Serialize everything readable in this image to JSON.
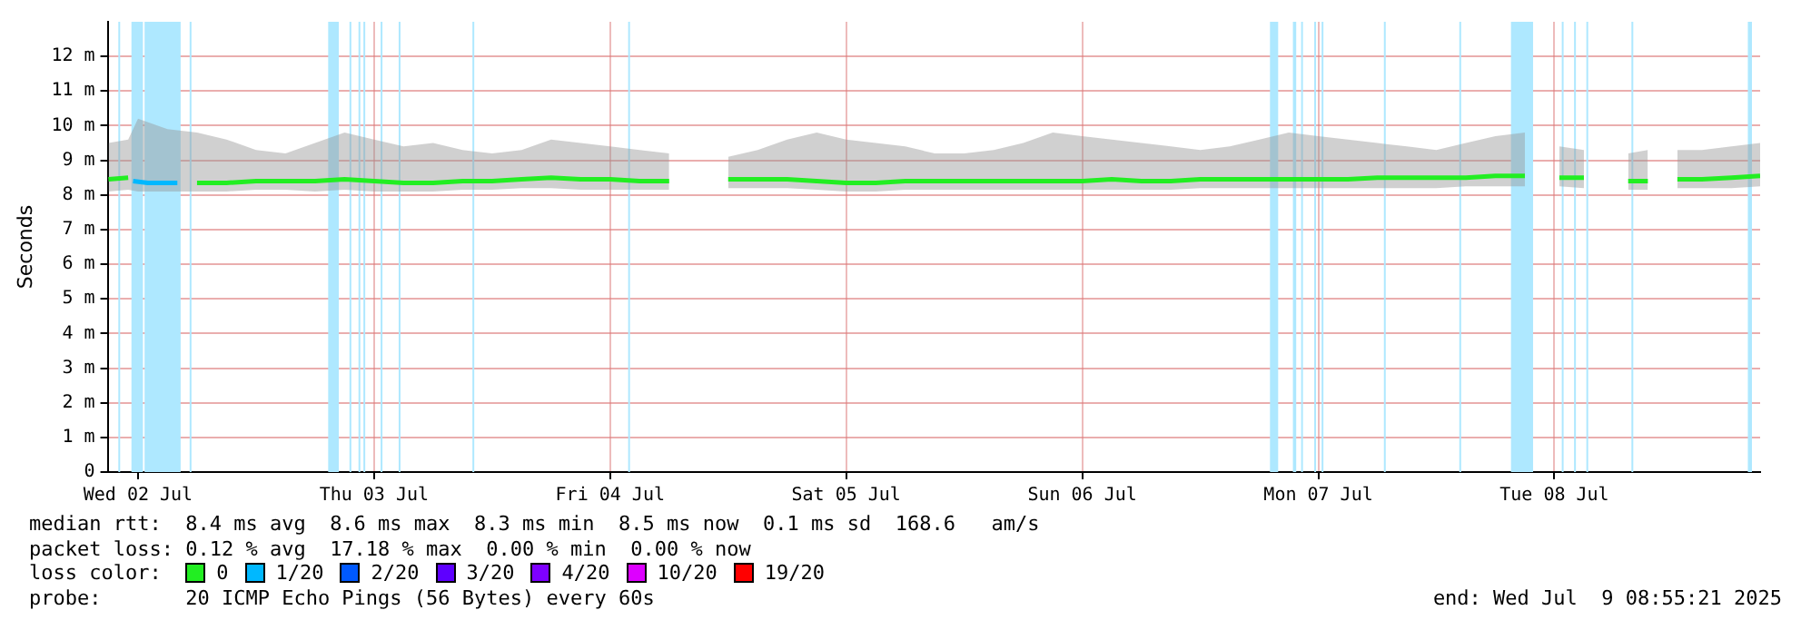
{
  "chart_data": {
    "type": "line",
    "ylabel": "Seconds",
    "legend_title": "loss color:",
    "legend": "bottom",
    "grid": true,
    "line_style": "solid",
    "marker": "none",
    "xlim": [
      "2025-07-02T08:55",
      "2025-07-09T08:55"
    ],
    "xticks": [
      {
        "value": "2025-07-02T12:00",
        "label": "Wed 02 Jul"
      },
      {
        "value": "2025-07-03T12:00",
        "label": "Thu 03 Jul"
      },
      {
        "value": "2025-07-04T12:00",
        "label": "Fri 04 Jul"
      },
      {
        "value": "2025-07-05T12:00",
        "label": "Sat 05 Jul"
      },
      {
        "value": "2025-07-06T12:00",
        "label": "Sun 06 Jul"
      },
      {
        "value": "2025-07-07T12:00",
        "label": "Mon 07 Jul"
      },
      {
        "value": "2025-07-08T12:00",
        "label": "Tue 08 Jul"
      }
    ],
    "ylim": [
      0,
      13
    ],
    "yticks": [
      0,
      {
        "value": 1,
        "label": "1 m"
      },
      {
        "value": 2,
        "label": "2 m"
      },
      {
        "value": 3,
        "label": "3 m"
      },
      {
        "value": 4,
        "label": "4 m"
      },
      {
        "value": 5,
        "label": "5 m"
      },
      {
        "value": 6,
        "label": "6 m"
      },
      {
        "value": 7,
        "label": "7 m"
      },
      {
        "value": 8,
        "label": "8 m"
      },
      {
        "value": 9,
        "label": "9 m"
      },
      {
        "value": 10,
        "label": "10 m"
      },
      {
        "value": 11,
        "label": "11 m"
      },
      {
        "value": 12,
        "label": "12 m"
      }
    ],
    "series": [
      {
        "name": "0",
        "color": "#22ee22",
        "x": [
          "2025-07-02T09:00",
          "2025-07-02T11:00",
          "2025-07-02T12:00",
          "2025-07-02T15:00",
          "2025-07-02T18:00",
          "2025-07-02T21:00",
          "2025-07-03T00:00",
          "2025-07-03T03:00",
          "2025-07-03T06:00",
          "2025-07-03T09:00",
          "2025-07-03T12:00",
          "2025-07-03T15:00",
          "2025-07-03T18:00",
          "2025-07-03T21:00",
          "2025-07-04T00:00",
          "2025-07-04T03:00",
          "2025-07-04T06:00",
          "2025-07-04T09:00",
          "2025-07-04T12:00",
          "2025-07-04T15:00",
          "2025-07-04T18:00",
          "2025-07-04T21:00",
          "2025-07-05T00:00",
          "2025-07-05T03:00",
          "2025-07-05T06:00",
          "2025-07-05T09:00",
          "2025-07-05T12:00",
          "2025-07-05T15:00",
          "2025-07-05T18:00",
          "2025-07-05T21:00",
          "2025-07-06T00:00",
          "2025-07-06T03:00",
          "2025-07-06T06:00",
          "2025-07-06T09:00",
          "2025-07-06T12:00",
          "2025-07-06T15:00",
          "2025-07-06T18:00",
          "2025-07-06T21:00",
          "2025-07-07T00:00",
          "2025-07-07T03:00",
          "2025-07-07T06:00",
          "2025-07-07T09:00",
          "2025-07-07T12:00",
          "2025-07-07T15:00",
          "2025-07-07T18:00",
          "2025-07-07T21:00",
          "2025-07-08T00:00",
          "2025-07-08T03:00",
          "2025-07-08T06:00",
          "2025-07-08T09:00",
          "2025-07-08T11:00",
          "2025-07-08T12:30",
          "2025-07-08T15:00",
          "2025-07-08T18:15",
          "2025-07-08T19:30",
          "2025-07-08T21:30",
          "2025-07-08T23:00",
          "2025-07-09T00:30",
          "2025-07-09T03:00",
          "2025-07-09T06:00",
          "2025-07-09T08:55"
        ],
        "values": [
          8.45,
          8.5,
          null,
          null,
          8.35,
          8.35,
          8.4,
          8.4,
          8.4,
          8.45,
          8.4,
          8.35,
          8.35,
          8.4,
          8.4,
          8.45,
          8.5,
          8.45,
          8.45,
          8.4,
          8.4,
          null,
          8.45,
          8.45,
          8.45,
          8.4,
          8.35,
          8.35,
          8.4,
          8.4,
          8.4,
          8.4,
          8.4,
          8.4,
          8.4,
          8.45,
          8.4,
          8.4,
          8.45,
          8.45,
          8.45,
          8.45,
          8.45,
          8.45,
          8.5,
          8.5,
          8.5,
          8.5,
          8.55,
          8.55,
          null,
          8.5,
          8.5,
          null,
          8.4,
          8.4,
          null,
          8.45,
          8.45,
          8.5,
          8.55
        ],
        "lower": [
          8.1,
          8.15,
          8.1,
          8.1,
          8.1,
          8.1,
          8.15,
          8.15,
          8.1,
          8.15,
          8.1,
          8.1,
          8.1,
          8.15,
          8.15,
          8.2,
          8.2,
          8.15,
          8.15,
          8.15,
          8.15,
          null,
          8.2,
          8.2,
          8.2,
          8.15,
          8.1,
          8.1,
          8.15,
          8.15,
          8.15,
          8.15,
          8.15,
          8.15,
          8.15,
          8.15,
          8.15,
          8.15,
          8.2,
          8.2,
          8.2,
          8.2,
          8.2,
          8.2,
          8.2,
          8.2,
          8.2,
          8.25,
          8.25,
          8.25,
          null,
          8.25,
          8.2,
          null,
          8.15,
          8.15,
          null,
          8.2,
          8.2,
          8.2,
          8.25
        ],
        "upper": [
          9.5,
          9.6,
          10.2,
          9.9,
          9.8,
          9.6,
          9.3,
          9.2,
          9.5,
          9.8,
          9.6,
          9.4,
          9.5,
          9.3,
          9.2,
          9.3,
          9.6,
          9.5,
          9.4,
          9.3,
          9.2,
          null,
          9.1,
          9.3,
          9.6,
          9.8,
          9.6,
          9.5,
          9.4,
          9.2,
          9.2,
          9.3,
          9.5,
          9.8,
          9.7,
          9.6,
          9.5,
          9.4,
          9.3,
          9.4,
          9.6,
          9.8,
          9.7,
          9.6,
          9.5,
          9.4,
          9.3,
          9.5,
          9.7,
          9.8,
          null,
          9.4,
          9.3,
          null,
          9.2,
          9.3,
          null,
          9.3,
          9.3,
          9.4,
          9.5
        ]
      },
      {
        "name": "1/20",
        "color": "#00b8ff",
        "x": [
          "2025-07-02T11:30",
          "2025-07-02T13:00",
          "2025-07-02T16:00"
        ],
        "values": [
          8.4,
          8.35,
          8.35
        ]
      },
      {
        "name": "2/20",
        "color": "#0059ff"
      },
      {
        "name": "3/20",
        "color": "#5e00ff"
      },
      {
        "name": "4/20",
        "color": "#7e00ff"
      },
      {
        "name": "10/20",
        "color": "#dd00ff"
      },
      {
        "name": "19/20",
        "color": "#ff0000"
      }
    ],
    "bands": [
      {
        "axis": "x",
        "from": "2025-07-02T10:00",
        "to": "2025-07-02T10:10",
        "color": "#aee8ff"
      },
      {
        "axis": "x",
        "from": "2025-07-02T11:20",
        "to": "2025-07-02T12:30",
        "color": "#aee8ff"
      },
      {
        "axis": "x",
        "from": "2025-07-02T12:40",
        "to": "2025-07-02T16:20",
        "color": "#aee8ff"
      },
      {
        "axis": "x",
        "from": "2025-07-02T17:15",
        "to": "2025-07-02T17:25",
        "color": "#aee8ff"
      },
      {
        "axis": "x",
        "from": "2025-07-03T07:20",
        "to": "2025-07-03T08:25",
        "color": "#aee8ff"
      },
      {
        "axis": "x",
        "from": "2025-07-03T09:30",
        "to": "2025-07-03T09:40",
        "color": "#aee8ff"
      },
      {
        "axis": "x",
        "from": "2025-07-03T10:25",
        "to": "2025-07-03T10:35",
        "color": "#aee8ff"
      },
      {
        "axis": "x",
        "from": "2025-07-03T10:55",
        "to": "2025-07-03T11:05",
        "color": "#aee8ff"
      },
      {
        "axis": "x",
        "from": "2025-07-03T12:40",
        "to": "2025-07-03T12:50",
        "color": "#aee8ff"
      },
      {
        "axis": "x",
        "from": "2025-07-03T14:30",
        "to": "2025-07-03T14:40",
        "color": "#aee8ff"
      },
      {
        "axis": "x",
        "from": "2025-07-03T22:00",
        "to": "2025-07-03T22:10",
        "color": "#aee8ff"
      },
      {
        "axis": "x",
        "from": "2025-07-04T13:50",
        "to": "2025-07-04T14:00",
        "color": "#aee8ff"
      },
      {
        "axis": "x",
        "from": "2025-07-07T07:05",
        "to": "2025-07-07T07:55",
        "color": "#aee8ff"
      },
      {
        "axis": "x",
        "from": "2025-07-07T09:25",
        "to": "2025-07-07T09:45",
        "color": "#aee8ff"
      },
      {
        "axis": "x",
        "from": "2025-07-07T10:15",
        "to": "2025-07-07T10:25",
        "color": "#aee8ff"
      },
      {
        "axis": "x",
        "from": "2025-07-07T11:35",
        "to": "2025-07-07T11:45",
        "color": "#aee8ff"
      },
      {
        "axis": "x",
        "from": "2025-07-07T12:20",
        "to": "2025-07-07T12:30",
        "color": "#aee8ff"
      },
      {
        "axis": "x",
        "from": "2025-07-07T18:40",
        "to": "2025-07-07T18:50",
        "color": "#aee8ff"
      },
      {
        "axis": "x",
        "from": "2025-07-08T02:20",
        "to": "2025-07-08T02:30",
        "color": "#aee8ff"
      },
      {
        "axis": "x",
        "from": "2025-07-08T07:35",
        "to": "2025-07-08T09:50",
        "color": "#aee8ff"
      },
      {
        "axis": "x",
        "from": "2025-07-08T12:45",
        "to": "2025-07-08T12:55",
        "color": "#aee8ff"
      },
      {
        "axis": "x",
        "from": "2025-07-08T14:00",
        "to": "2025-07-08T14:10",
        "color": "#aee8ff"
      },
      {
        "axis": "x",
        "from": "2025-07-08T15:15",
        "to": "2025-07-08T15:25",
        "color": "#aee8ff"
      },
      {
        "axis": "x",
        "from": "2025-07-08T19:50",
        "to": "2025-07-08T20:00",
        "color": "#aee8ff"
      },
      {
        "axis": "x",
        "from": "2025-07-09T07:40",
        "to": "2025-07-09T08:05",
        "color": "#aee8ff"
      }
    ],
    "annotations": [
      "median rtt:  8.4 ms avg  8.6 ms max  8.3 ms min  8.5 ms now  0.1 ms sd  168.6   am/s",
      "packet loss: 0.12 % avg  17.18 % max  0.00 % min  0.00 % now",
      "probe:       20 ICMP Echo Pings (56 Bytes) every 60s",
      "end: Wed Jul  9 08:55:21 2025"
    ]
  }
}
